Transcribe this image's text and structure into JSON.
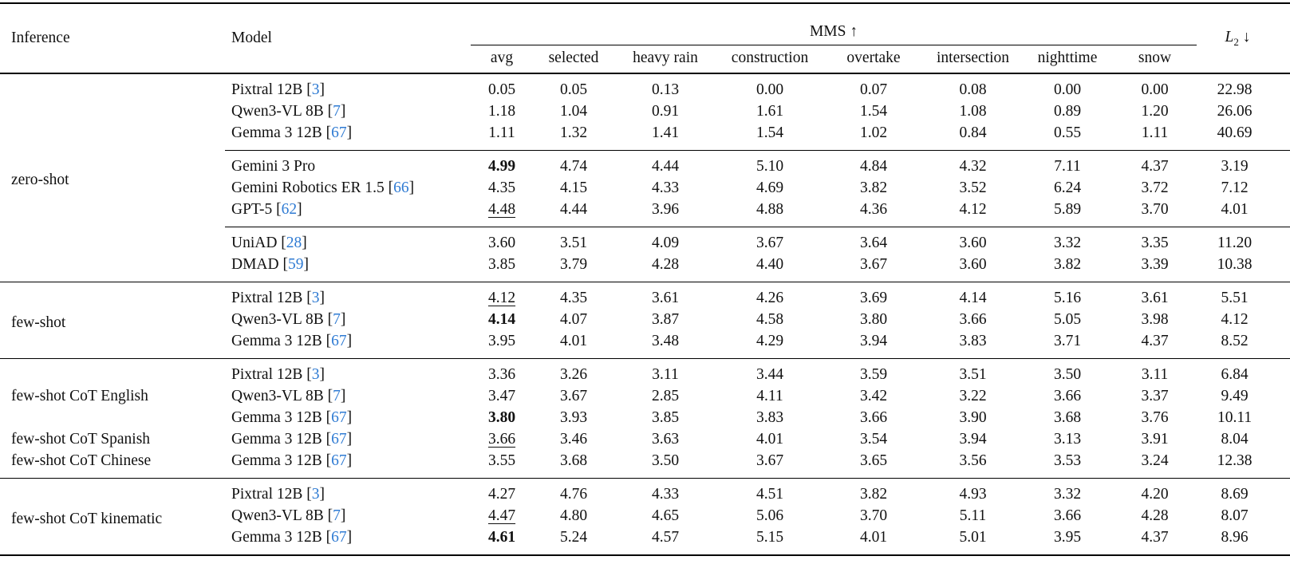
{
  "colors": {
    "citation": "#2f7bd3",
    "rule": "#000000",
    "text": "#111111",
    "background": "#ffffff"
  },
  "header": {
    "inference": "Inference",
    "model": "Model",
    "mms_group": "MMS ↑",
    "l2": {
      "base": "L",
      "sub": "2",
      "arrow": "↓"
    },
    "sub_columns": [
      "avg",
      "selected",
      "heavy rain",
      "construction",
      "overtake",
      "intersection",
      "nighttime",
      "snow"
    ]
  },
  "sections": [
    {
      "blocks": [
        {
          "inference": "zero-shot",
          "subblocks": [
            {
              "rows": [
                {
                  "model": "Pixtral 12B",
                  "cite": "3",
                  "avg_style": "normal",
                  "values": [
                    "0.05",
                    "0.05",
                    "0.13",
                    "0.00",
                    "0.07",
                    "0.08",
                    "0.00",
                    "0.00"
                  ],
                  "l2": "22.98"
                },
                {
                  "model": "Qwen3-VL 8B",
                  "cite": "7",
                  "avg_style": "normal",
                  "values": [
                    "1.18",
                    "1.04",
                    "0.91",
                    "1.61",
                    "1.54",
                    "1.08",
                    "0.89",
                    "1.20"
                  ],
                  "l2": "26.06"
                },
                {
                  "model": "Gemma 3 12B",
                  "cite": "67",
                  "avg_style": "normal",
                  "values": [
                    "1.11",
                    "1.32",
                    "1.41",
                    "1.54",
                    "1.02",
                    "0.84",
                    "0.55",
                    "1.11"
                  ],
                  "l2": "40.69"
                }
              ]
            },
            {
              "rows": [
                {
                  "model": "Gemini 3 Pro",
                  "cite": null,
                  "avg_style": "bold",
                  "values": [
                    "4.99",
                    "4.74",
                    "4.44",
                    "5.10",
                    "4.84",
                    "4.32",
                    "7.11",
                    "4.37"
                  ],
                  "l2": "3.19"
                },
                {
                  "model": "Gemini Robotics ER 1.5",
                  "cite": "66",
                  "avg_style": "normal",
                  "values": [
                    "4.35",
                    "4.15",
                    "4.33",
                    "4.69",
                    "3.82",
                    "3.52",
                    "6.24",
                    "3.72"
                  ],
                  "l2": "7.12"
                },
                {
                  "model": "GPT-5",
                  "cite": "62",
                  "avg_style": "underline",
                  "values": [
                    "4.48",
                    "4.44",
                    "3.96",
                    "4.88",
                    "4.36",
                    "4.12",
                    "5.89",
                    "3.70"
                  ],
                  "l2": "4.01"
                }
              ]
            },
            {
              "rows": [
                {
                  "model": "UniAD",
                  "cite": "28",
                  "avg_style": "normal",
                  "values": [
                    "3.60",
                    "3.51",
                    "4.09",
                    "3.67",
                    "3.64",
                    "3.60",
                    "3.32",
                    "3.35"
                  ],
                  "l2": "11.20"
                },
                {
                  "model": "DMAD",
                  "cite": "59",
                  "avg_style": "normal",
                  "values": [
                    "3.85",
                    "3.79",
                    "4.28",
                    "4.40",
                    "3.67",
                    "3.60",
                    "3.82",
                    "3.39"
                  ],
                  "l2": "10.38"
                }
              ]
            }
          ]
        }
      ]
    },
    {
      "blocks": [
        {
          "inference": "few-shot",
          "subblocks": [
            {
              "rows": [
                {
                  "model": "Pixtral 12B",
                  "cite": "3",
                  "avg_style": "underline",
                  "values": [
                    "4.12",
                    "4.35",
                    "3.61",
                    "4.26",
                    "3.69",
                    "4.14",
                    "5.16",
                    "3.61"
                  ],
                  "l2": "5.51"
                },
                {
                  "model": "Qwen3-VL 8B",
                  "cite": "7",
                  "avg_style": "bold",
                  "values": [
                    "4.14",
                    "4.07",
                    "3.87",
                    "4.58",
                    "3.80",
                    "3.66",
                    "5.05",
                    "3.98"
                  ],
                  "l2": "4.12"
                },
                {
                  "model": "Gemma 3 12B",
                  "cite": "67",
                  "avg_style": "normal",
                  "values": [
                    "3.95",
                    "4.01",
                    "3.48",
                    "4.29",
                    "3.94",
                    "3.83",
                    "3.71",
                    "4.37"
                  ],
                  "l2": "8.52"
                }
              ]
            }
          ]
        }
      ]
    },
    {
      "blocks": [
        {
          "inference": "few-shot CoT English",
          "subblocks": [
            {
              "rows": [
                {
                  "model": "Pixtral 12B",
                  "cite": "3",
                  "avg_style": "normal",
                  "values": [
                    "3.36",
                    "3.26",
                    "3.11",
                    "3.44",
                    "3.59",
                    "3.51",
                    "3.50",
                    "3.11"
                  ],
                  "l2": "6.84"
                },
                {
                  "model": "Qwen3-VL 8B",
                  "cite": "7",
                  "avg_style": "normal",
                  "values": [
                    "3.47",
                    "3.67",
                    "2.85",
                    "4.11",
                    "3.42",
                    "3.22",
                    "3.66",
                    "3.37"
                  ],
                  "l2": "9.49"
                },
                {
                  "model": "Gemma 3 12B",
                  "cite": "67",
                  "avg_style": "bold",
                  "values": [
                    "3.80",
                    "3.93",
                    "3.85",
                    "3.83",
                    "3.66",
                    "3.90",
                    "3.68",
                    "3.76"
                  ],
                  "l2": "10.11"
                }
              ]
            }
          ]
        },
        {
          "inference": "few-shot CoT Spanish",
          "subblocks": [
            {
              "rows": [
                {
                  "model": "Gemma 3 12B",
                  "cite": "67",
                  "avg_style": "underline",
                  "values": [
                    "3.66",
                    "3.46",
                    "3.63",
                    "4.01",
                    "3.54",
                    "3.94",
                    "3.13",
                    "3.91"
                  ],
                  "l2": "8.04"
                }
              ]
            }
          ]
        },
        {
          "inference": "few-shot CoT Chinese",
          "subblocks": [
            {
              "rows": [
                {
                  "model": "Gemma 3 12B",
                  "cite": "67",
                  "avg_style": "normal",
                  "values": [
                    "3.55",
                    "3.68",
                    "3.50",
                    "3.67",
                    "3.65",
                    "3.56",
                    "3.53",
                    "3.24"
                  ],
                  "l2": "12.38"
                }
              ]
            }
          ]
        }
      ]
    },
    {
      "blocks": [
        {
          "inference": "few-shot CoT kinematic",
          "subblocks": [
            {
              "rows": [
                {
                  "model": "Pixtral 12B",
                  "cite": "3",
                  "avg_style": "normal",
                  "values": [
                    "4.27",
                    "4.76",
                    "4.33",
                    "4.51",
                    "3.82",
                    "4.93",
                    "3.32",
                    "4.20"
                  ],
                  "l2": "8.69"
                },
                {
                  "model": "Qwen3-VL 8B",
                  "cite": "7",
                  "avg_style": "underline",
                  "values": [
                    "4.47",
                    "4.80",
                    "4.65",
                    "5.06",
                    "3.70",
                    "5.11",
                    "3.66",
                    "4.28"
                  ],
                  "l2": "8.07"
                },
                {
                  "model": "Gemma 3 12B",
                  "cite": "67",
                  "avg_style": "bold",
                  "values": [
                    "4.61",
                    "5.24",
                    "4.57",
                    "5.15",
                    "4.01",
                    "5.01",
                    "3.95",
                    "4.37"
                  ],
                  "l2": "8.96"
                }
              ]
            }
          ]
        }
      ]
    }
  ]
}
